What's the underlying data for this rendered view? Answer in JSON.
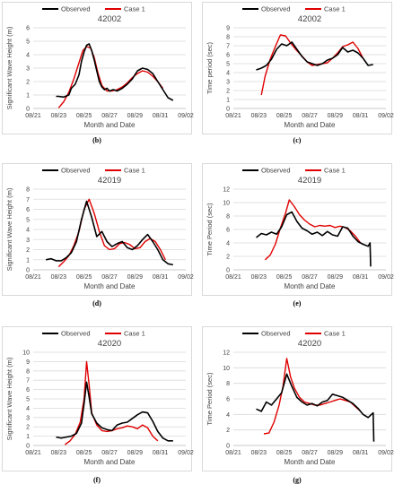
{
  "chart_data": [
    {
      "panel_label": "(b)",
      "type": "line",
      "title": "42002",
      "xlabel": "Month and Date",
      "ylabel": "Significant Wave Height (m)",
      "ylim": [
        0,
        6
      ],
      "yticks": [
        0,
        1,
        2,
        3,
        4,
        5,
        6
      ],
      "xlim": [
        0,
        12
      ],
      "xticks": [
        "08/21",
        "08/23",
        "08/25",
        "08/27",
        "08/29",
        "08/31",
        "09/02"
      ],
      "grid": "horizontal",
      "legend": "top",
      "series": [
        {
          "name": "Observed",
          "color": "#000000",
          "x": [
            1.8,
            2.0,
            2.4,
            2.8,
            3.0,
            3.3,
            3.6,
            3.8,
            4.0,
            4.2,
            4.4,
            4.6,
            4.8,
            5.0,
            5.2,
            5.4,
            5.6,
            5.8,
            6.0,
            6.3,
            6.6,
            7.0,
            7.4,
            7.8,
            8.0,
            8.2,
            8.6,
            9.0,
            9.4,
            9.8,
            10.2,
            10.6,
            11.0
          ],
          "y": [
            0.9,
            0.9,
            0.85,
            1.0,
            1.5,
            1.8,
            2.5,
            3.5,
            4.2,
            4.7,
            4.8,
            4.3,
            3.6,
            2.8,
            2.0,
            1.6,
            1.4,
            1.5,
            1.3,
            1.4,
            1.3,
            1.5,
            1.8,
            2.2,
            2.5,
            2.8,
            3.0,
            2.9,
            2.6,
            2.0,
            1.4,
            0.8,
            0.6
          ]
        },
        {
          "name": "Case 1",
          "color": "#e00000",
          "x": [
            2.0,
            2.4,
            2.8,
            3.2,
            3.6,
            3.9,
            4.2,
            4.5,
            4.8,
            5.1,
            5.4,
            5.8,
            6.2,
            6.6,
            7.0,
            7.4,
            7.8,
            8.2,
            8.6,
            9.0,
            9.4,
            9.8,
            10.2
          ],
          "y": [
            0.05,
            0.5,
            1.2,
            2.2,
            3.4,
            4.3,
            4.6,
            4.5,
            3.8,
            2.6,
            1.7,
            1.3,
            1.3,
            1.4,
            1.6,
            1.9,
            2.3,
            2.6,
            2.8,
            2.7,
            2.4,
            2.0,
            1.5
          ]
        }
      ]
    },
    {
      "panel_label": "(c)",
      "type": "line",
      "title": "42002",
      "xlabel": "Month and Date",
      "ylabel": "Time period (sec)",
      "ylim": [
        0,
        9
      ],
      "yticks": [
        0,
        1,
        2,
        3,
        4,
        5,
        6,
        7,
        8,
        9
      ],
      "xlim": [
        0,
        12
      ],
      "xticks": [
        "08/21",
        "08/23",
        "08/25",
        "08/27",
        "08/29",
        "08/31",
        "09/02"
      ],
      "grid": "horizontal",
      "legend": "top",
      "series": [
        {
          "name": "Observed",
          "color": "#000000",
          "x": [
            1.8,
            2.2,
            2.6,
            3.0,
            3.4,
            3.8,
            4.2,
            4.6,
            5.0,
            5.4,
            5.8,
            6.2,
            6.6,
            7.0,
            7.4,
            7.8,
            8.2,
            8.6,
            9.0,
            9.4,
            9.8,
            10.2,
            10.6,
            11.0
          ],
          "y": [
            4.3,
            4.5,
            4.8,
            5.5,
            6.6,
            7.2,
            7.0,
            7.4,
            6.6,
            5.8,
            5.2,
            5.0,
            4.8,
            5.0,
            5.4,
            5.6,
            6.0,
            6.8,
            6.3,
            6.5,
            6.2,
            5.6,
            4.8,
            4.9
          ]
        },
        {
          "name": "Case 1",
          "color": "#e00000",
          "x": [
            2.2,
            2.5,
            2.9,
            3.3,
            3.7,
            4.1,
            4.5,
            4.9,
            5.3,
            5.8,
            6.2,
            6.6,
            7.0,
            7.4,
            7.8,
            8.2,
            8.6,
            9.0,
            9.4,
            9.8,
            10.2
          ],
          "y": [
            1.5,
            3.6,
            5.5,
            6.9,
            8.2,
            8.1,
            7.3,
            6.6,
            6.0,
            5.2,
            4.8,
            4.9,
            5.0,
            5.1,
            5.6,
            6.2,
            6.9,
            7.1,
            7.4,
            6.7,
            5.6
          ]
        }
      ]
    },
    {
      "panel_label": "(d)",
      "type": "line",
      "title": "42019",
      "xlabel": "Month and Date",
      "ylabel": "Significant Wave Height (m)",
      "ylim": [
        0,
        8
      ],
      "yticks": [
        0,
        1,
        2,
        3,
        4,
        5,
        6,
        7,
        8
      ],
      "xlim": [
        0,
        12
      ],
      "xticks": [
        "08/21",
        "08/23",
        "08/25",
        "08/27",
        "08/29",
        "08/31",
        "09/02"
      ],
      "grid": "horizontal",
      "legend": "top",
      "series": [
        {
          "name": "Observed",
          "color": "#000000",
          "x": [
            1.0,
            1.4,
            1.8,
            2.2,
            2.6,
            3.0,
            3.4,
            3.8,
            4.2,
            4.6,
            5.0,
            5.4,
            5.8,
            6.2,
            6.6,
            7.0,
            7.4,
            7.8,
            8.2,
            8.6,
            9.0,
            9.4,
            9.8,
            10.2,
            10.6,
            11.0
          ],
          "y": [
            1.0,
            1.1,
            0.9,
            0.9,
            1.2,
            1.7,
            2.8,
            5.0,
            6.8,
            5.2,
            3.3,
            3.8,
            2.8,
            2.3,
            2.6,
            2.8,
            2.2,
            2.0,
            2.4,
            3.0,
            3.5,
            2.8,
            2.0,
            1.0,
            0.6,
            0.5
          ]
        },
        {
          "name": "Case 1",
          "color": "#e00000",
          "x": [
            2.0,
            2.4,
            2.8,
            3.2,
            3.6,
            4.0,
            4.4,
            4.8,
            5.2,
            5.6,
            6.0,
            6.4,
            6.8,
            7.2,
            7.6,
            8.0,
            8.4,
            8.8,
            9.2,
            9.6,
            10.0,
            10.4
          ],
          "y": [
            0.3,
            0.8,
            1.4,
            2.4,
            3.8,
            6.0,
            7.0,
            5.6,
            3.8,
            2.4,
            2.0,
            2.1,
            2.6,
            2.7,
            2.5,
            2.1,
            2.2,
            2.8,
            3.1,
            2.8,
            2.0,
            1.0
          ]
        }
      ]
    },
    {
      "panel_label": "(e)",
      "type": "line",
      "title": "42019",
      "xlabel": "Month and Date",
      "ylabel": "Time Period (sec)",
      "ylim": [
        0,
        12
      ],
      "yticks": [
        0,
        2,
        4,
        6,
        8,
        10,
        12
      ],
      "xlim": [
        0,
        12
      ],
      "xticks": [
        "08/21",
        "08/23",
        "08/25",
        "08/27",
        "08/29",
        "08/31",
        "09/02"
      ],
      "grid": "horizontal",
      "legend": "top",
      "series": [
        {
          "name": "Observed",
          "color": "#000000",
          "x": [
            1.8,
            2.2,
            2.6,
            3.0,
            3.4,
            3.8,
            4.2,
            4.6,
            5.0,
            5.4,
            5.8,
            6.2,
            6.6,
            7.0,
            7.4,
            7.8,
            8.2,
            8.6,
            9.0,
            9.4,
            9.8,
            10.2,
            10.6,
            10.75,
            10.8
          ],
          "y": [
            4.8,
            5.4,
            5.2,
            5.6,
            5.3,
            6.4,
            8.2,
            8.6,
            7.2,
            6.2,
            5.8,
            5.3,
            5.6,
            5.1,
            5.7,
            5.2,
            5.0,
            6.4,
            6.2,
            5.0,
            4.2,
            3.8,
            3.5,
            4.0,
            0.5
          ]
        },
        {
          "name": "Case 1",
          "color": "#e00000",
          "x": [
            2.5,
            2.9,
            3.3,
            3.7,
            4.1,
            4.4,
            4.8,
            5.2,
            5.6,
            6.0,
            6.4,
            6.8,
            7.2,
            7.6,
            8.0,
            8.4,
            8.8,
            9.2,
            9.6,
            10.0
          ],
          "y": [
            1.5,
            2.2,
            3.8,
            6.2,
            8.4,
            10.4,
            9.4,
            8.2,
            7.4,
            6.8,
            6.4,
            6.6,
            6.5,
            6.6,
            6.3,
            6.5,
            6.3,
            5.8,
            5.0,
            4.0
          ]
        }
      ]
    },
    {
      "panel_label": "(f)",
      "type": "line",
      "title": "42020",
      "xlabel": "Month and Date",
      "ylabel": "Significant Wave Height (m)",
      "ylim": [
        0,
        10
      ],
      "yticks": [
        0,
        1,
        2,
        3,
        4,
        5,
        6,
        7,
        8,
        9,
        10
      ],
      "xlim": [
        0,
        12
      ],
      "xticks": [
        "08/21",
        "08/23",
        "08/25",
        "08/27",
        "08/29",
        "08/31",
        "09/02"
      ],
      "grid": "horizontal",
      "legend": "top",
      "series": [
        {
          "name": "Observed",
          "color": "#000000",
          "x": [
            1.8,
            2.2,
            2.6,
            3.0,
            3.4,
            3.8,
            4.0,
            4.2,
            4.4,
            4.6,
            5.0,
            5.4,
            5.8,
            6.2,
            6.6,
            7.0,
            7.4,
            7.8,
            8.2,
            8.6,
            9.0,
            9.4,
            9.8,
            10.2,
            10.6,
            11.0
          ],
          "y": [
            0.9,
            0.8,
            0.9,
            1.0,
            1.3,
            2.4,
            4.5,
            6.8,
            5.2,
            3.4,
            2.4,
            1.9,
            1.7,
            1.6,
            2.2,
            2.4,
            2.5,
            2.9,
            3.3,
            3.6,
            3.5,
            2.6,
            1.5,
            0.8,
            0.5,
            0.5
          ]
        },
        {
          "name": "Case 1",
          "color": "#e00000",
          "x": [
            2.5,
            2.9,
            3.3,
            3.7,
            4.0,
            4.2,
            4.4,
            4.6,
            5.0,
            5.4,
            5.8,
            6.2,
            6.6,
            7.0,
            7.4,
            7.8,
            8.2,
            8.6,
            9.0,
            9.4,
            9.8
          ],
          "y": [
            0.1,
            0.5,
            1.2,
            2.5,
            5.0,
            9.0,
            6.5,
            3.5,
            2.2,
            1.6,
            1.5,
            1.6,
            1.8,
            1.9,
            2.1,
            2.0,
            1.8,
            2.2,
            1.9,
            1.0,
            0.5
          ]
        }
      ]
    },
    {
      "panel_label": "(g)",
      "type": "line",
      "title": "42020",
      "xlabel": "Month and Date",
      "ylabel": "Time Period (sec)",
      "ylim": [
        0,
        12
      ],
      "yticks": [
        0,
        2,
        4,
        6,
        8,
        10,
        12
      ],
      "xlim": [
        0,
        12
      ],
      "xticks": [
        "08/21",
        "08/23",
        "08/25",
        "08/27",
        "08/29",
        "08/31",
        "09/02"
      ],
      "grid": "horizontal",
      "legend": "top",
      "series": [
        {
          "name": "Observed",
          "color": "#000000",
          "x": [
            1.8,
            2.2,
            2.6,
            3.0,
            3.4,
            3.8,
            4.2,
            4.6,
            5.0,
            5.4,
            5.8,
            6.2,
            6.6,
            7.0,
            7.4,
            7.8,
            8.2,
            8.6,
            9.0,
            9.4,
            9.8,
            10.2,
            10.6,
            11.0,
            11.05
          ],
          "y": [
            4.7,
            4.4,
            5.6,
            5.2,
            6.0,
            6.8,
            9.2,
            7.6,
            6.2,
            5.6,
            5.2,
            5.4,
            5.1,
            5.6,
            5.8,
            6.6,
            6.4,
            6.2,
            5.8,
            5.4,
            4.8,
            4.0,
            3.6,
            4.2,
            0.5
          ]
        },
        {
          "name": "Case 1",
          "color": "#e00000",
          "x": [
            2.4,
            2.8,
            3.2,
            3.6,
            3.9,
            4.2,
            4.5,
            4.8,
            5.2,
            5.6,
            6.0,
            6.4,
            6.8,
            7.2,
            7.6,
            8.0,
            8.4,
            8.8,
            9.2,
            9.6,
            10.0
          ],
          "y": [
            1.5,
            1.6,
            3.0,
            5.2,
            7.6,
            11.2,
            8.8,
            7.4,
            6.2,
            5.6,
            5.4,
            5.2,
            5.2,
            5.4,
            5.6,
            5.8,
            6.0,
            5.8,
            5.6,
            5.0,
            4.4
          ]
        }
      ]
    }
  ]
}
